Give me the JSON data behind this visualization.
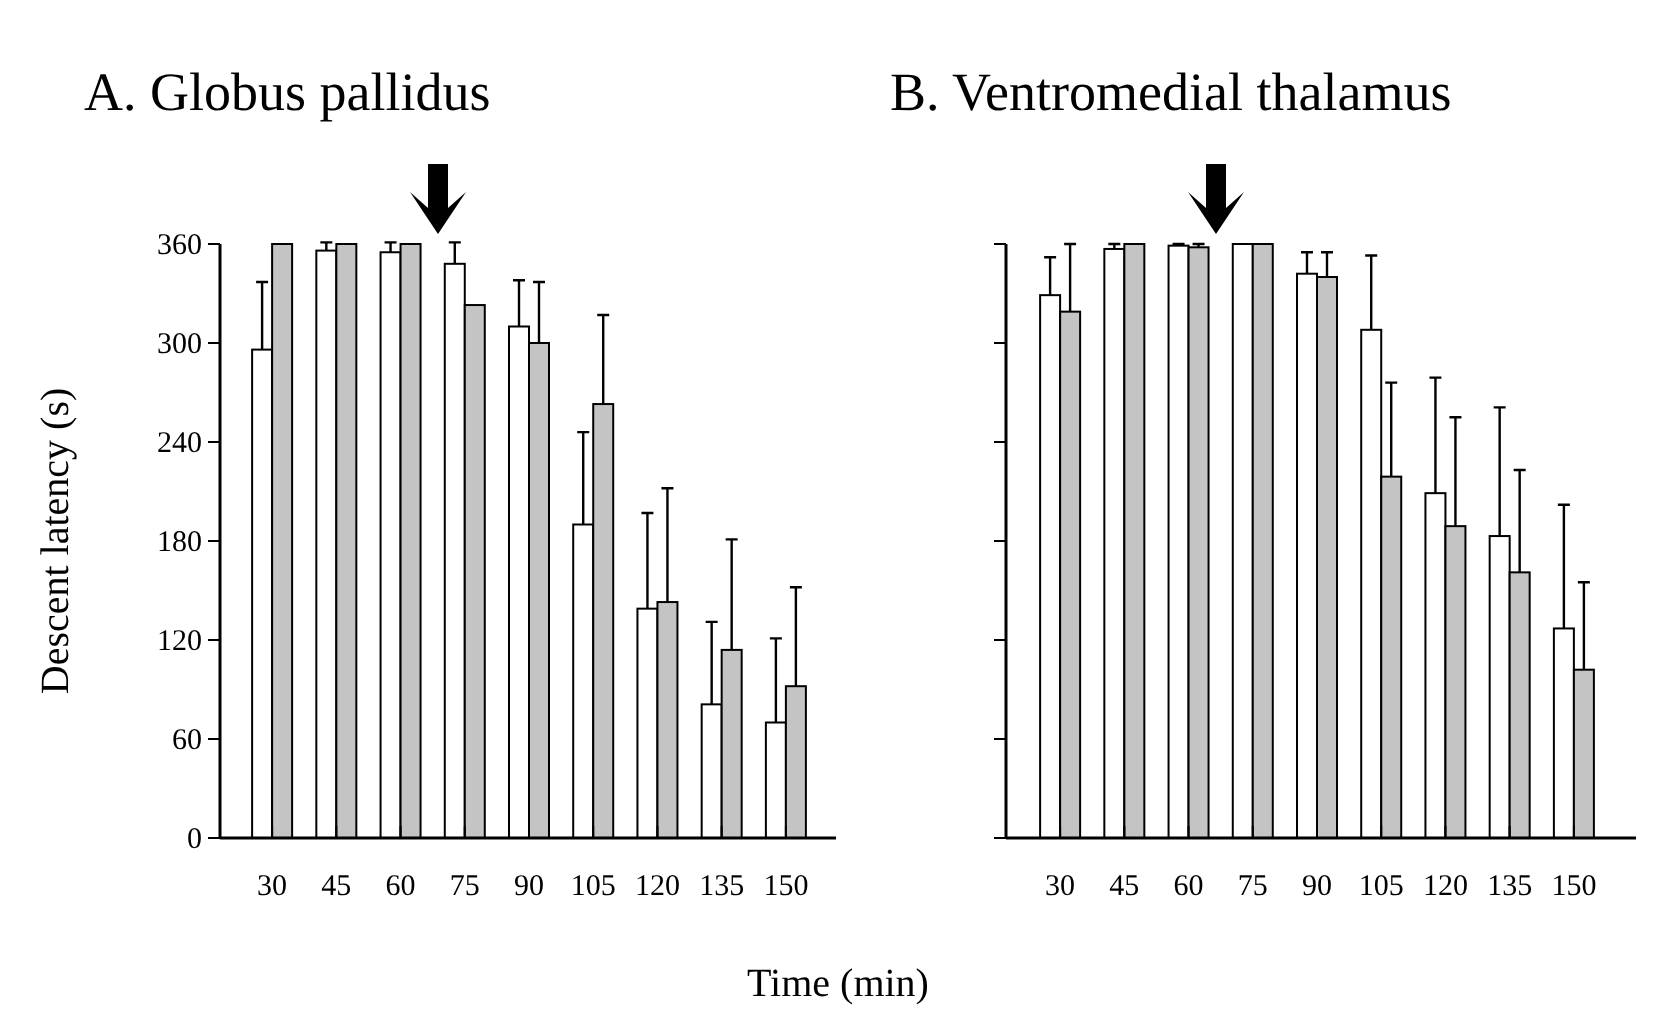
{
  "chart_data": [
    {
      "type": "bar",
      "title": "A. Globus pallidus",
      "xlabel": "Time (min)",
      "ylabel": "Descent latency (s)",
      "categories": [
        "30",
        "45",
        "60",
        "75",
        "90",
        "105",
        "120",
        "135",
        "150"
      ],
      "ylim": [
        0,
        360
      ],
      "yticks": [
        0,
        60,
        120,
        180,
        240,
        300,
        360
      ],
      "series": [
        {
          "color": "#ffffff",
          "values": [
            296,
            356,
            355,
            348,
            310,
            190,
            139,
            81,
            70
          ],
          "errors": [
            41,
            5,
            6,
            13,
            28,
            56,
            58,
            50,
            51
          ]
        },
        {
          "color": "#c4c4c4",
          "values": [
            360,
            360,
            360,
            323,
            300,
            263,
            143,
            114,
            92
          ],
          "errors": [
            null,
            null,
            null,
            null,
            37,
            54,
            69,
            67,
            60
          ]
        }
      ]
    },
    {
      "type": "bar",
      "title": "B. Ventromedial thalamus",
      "categories": [
        "30",
        "45",
        "60",
        "75",
        "90",
        "105",
        "120",
        "135",
        "150"
      ],
      "ylim": [
        0,
        360
      ],
      "yticks": [
        {
          "value": 0,
          "label": null
        },
        {
          "value": 60,
          "label": null
        },
        {
          "value": 120,
          "label": null
        },
        {
          "value": 180,
          "label": null
        },
        {
          "value": 240,
          "label": null
        },
        {
          "value": 300,
          "label": null
        },
        {
          "value": 360,
          "label": null
        }
      ],
      "tick_labels": "x",
      "series": [
        {
          "color": "#ffffff",
          "values": [
            329,
            357,
            359,
            360,
            342,
            308,
            209,
            183,
            127
          ],
          "errors": [
            23,
            3,
            1,
            null,
            13,
            45,
            70,
            78,
            75
          ]
        },
        {
          "color": "#c4c4c4",
          "values": [
            319,
            360,
            358,
            360,
            340,
            219,
            189,
            161,
            102
          ],
          "errors": [
            41,
            null,
            2,
            null,
            15,
            57,
            66,
            62,
            53
          ]
        }
      ]
    }
  ]
}
